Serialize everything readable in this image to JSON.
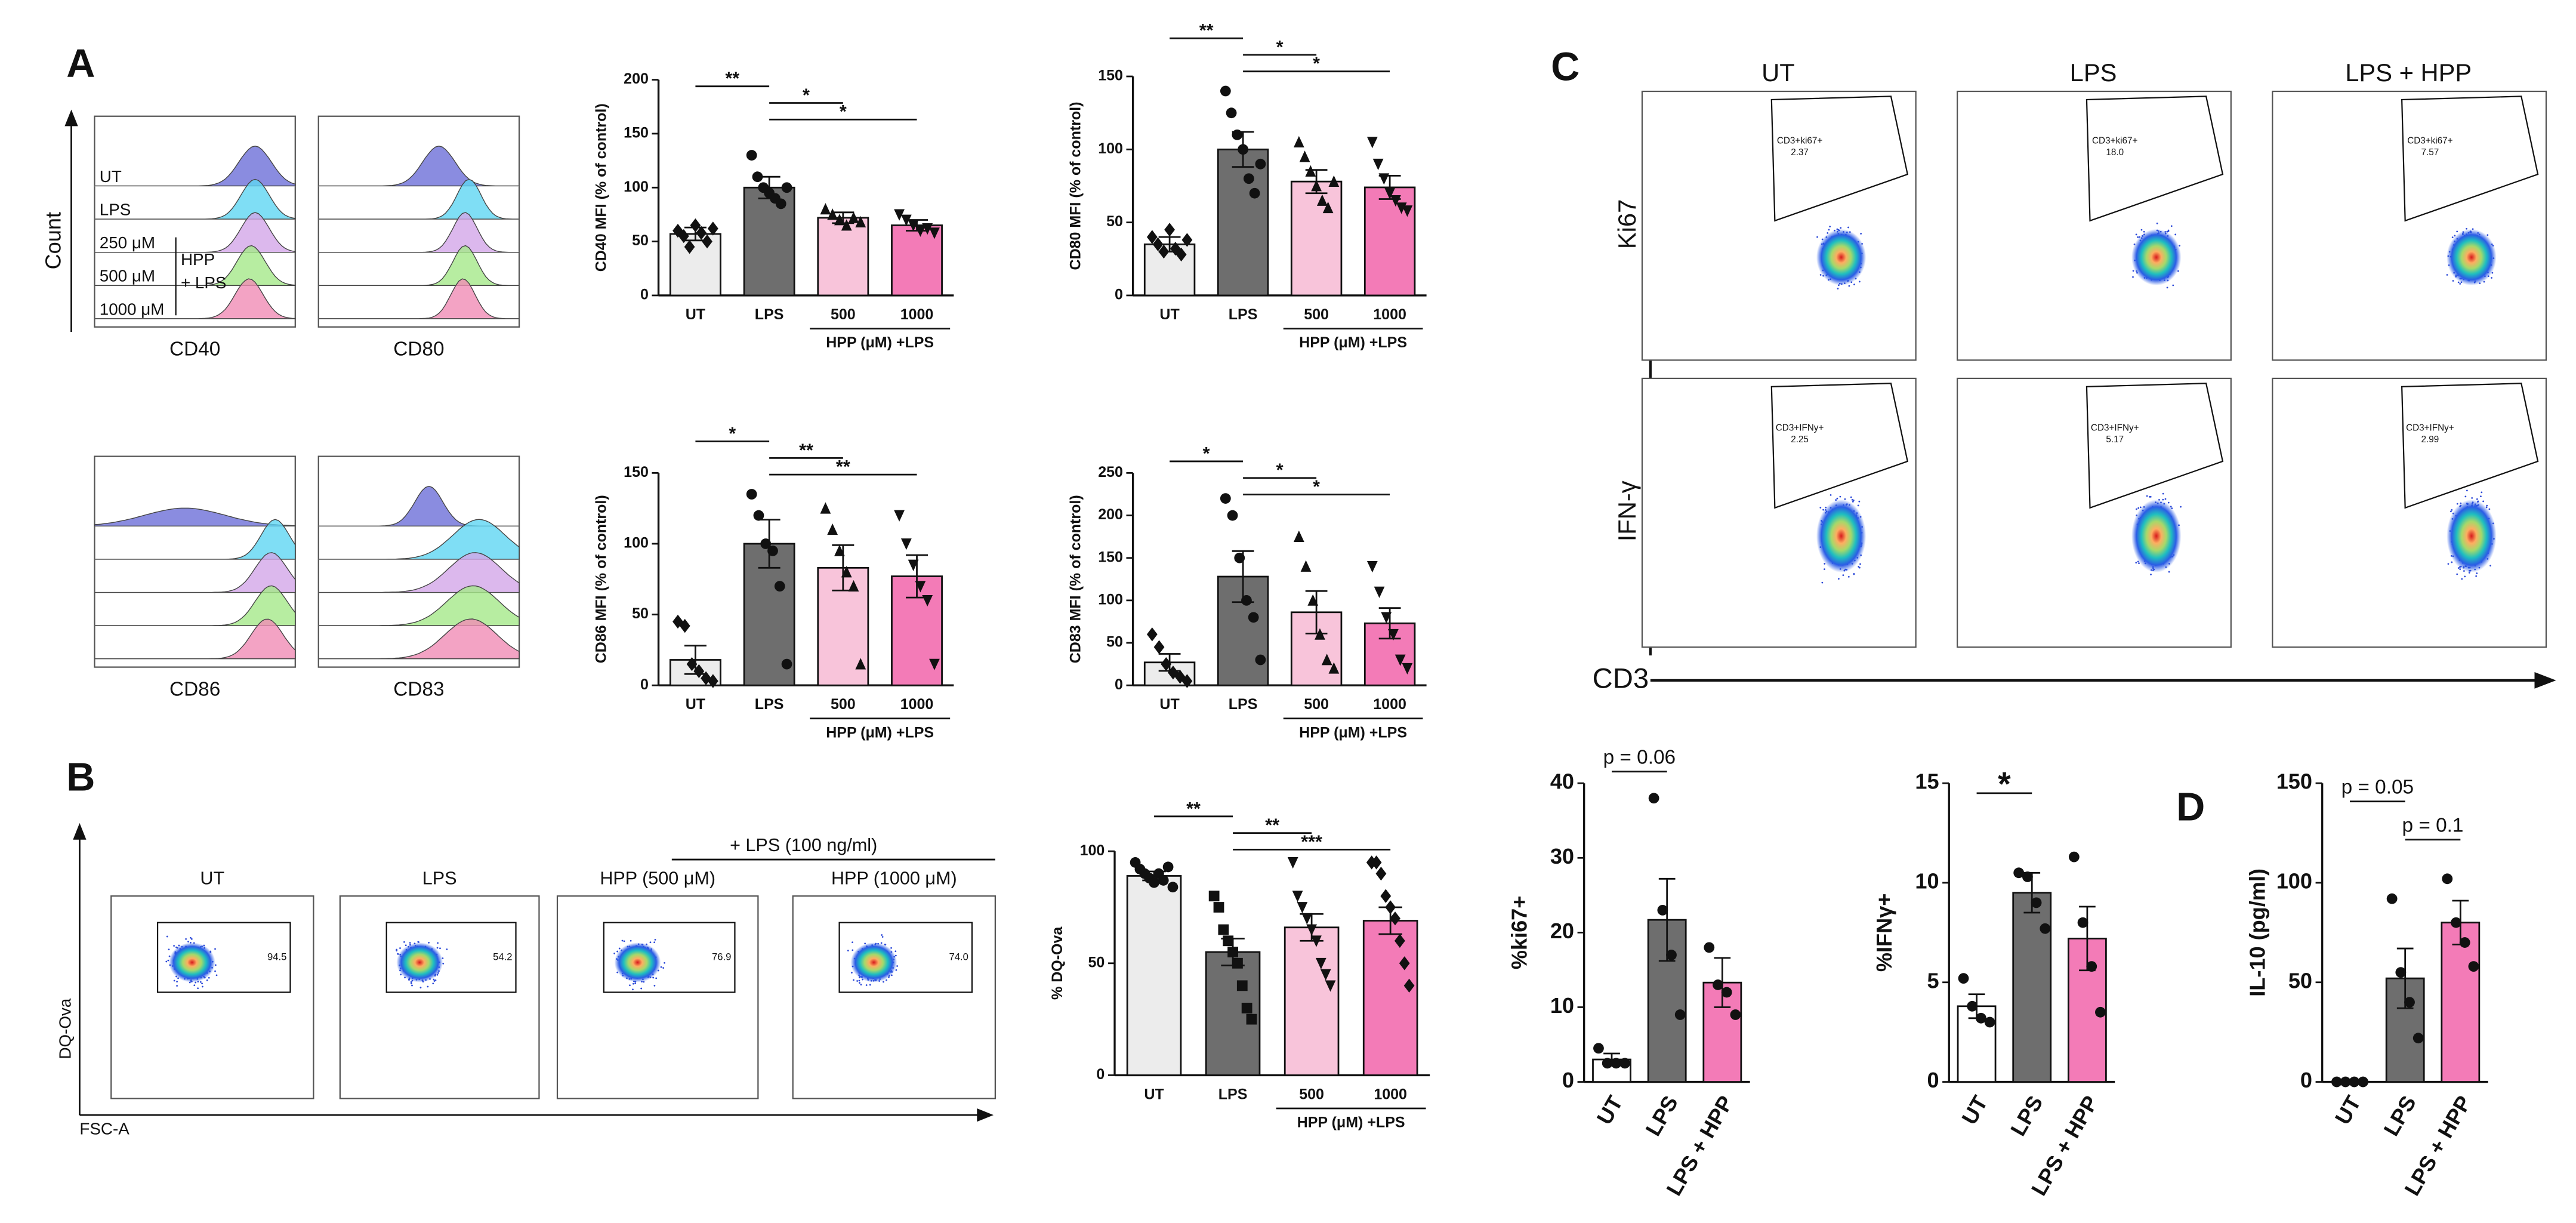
{
  "panel_labels": [
    "A",
    "B",
    "C",
    "D"
  ],
  "histograms": {
    "y_label": "Count",
    "track_labels": [
      "UT",
      "LPS",
      "250 μM",
      "500 μM",
      "1000 μM"
    ],
    "bracket_label": [
      "HPP",
      "+ LPS"
    ],
    "markers": [
      "CD40",
      "CD80",
      "CD86",
      "CD83"
    ]
  },
  "dq_flow": {
    "header": "+ LPS (100 ng/ml)",
    "titles": [
      "UT",
      "LPS",
      "HPP (500 μM)",
      "HPP (1000 μM)"
    ],
    "gate_values": [
      "94.5",
      "54.2",
      "76.9",
      "74.0"
    ],
    "y_label": "DQ-Ova",
    "x_label": "FSC-A"
  },
  "tcell_flow": {
    "titles": [
      "UT",
      "LPS",
      "LPS + HPP"
    ],
    "rows": [
      {
        "marker": "Ki67",
        "gate": "CD3+ki67+",
        "values": [
          "2.37",
          "18.0",
          "7.57"
        ]
      },
      {
        "marker": "IFN-γ",
        "gate": "CD3+IFNy+",
        "values": [
          "2.25",
          "5.17",
          "2.99"
        ]
      }
    ],
    "x_label": "CD3"
  },
  "chart_data": [
    {
      "type": "bar",
      "ylabel": "CD40 MFI (% of control)",
      "categories": [
        "UT",
        "LPS",
        "500",
        "1000"
      ],
      "colors": [
        "#ececec",
        "#6e6e6e",
        "#f8c4da",
        "#f37bb7"
      ],
      "markers": [
        "diamond",
        "circle",
        "triangle-up",
        "triangle-down"
      ],
      "values": [
        57,
        100,
        72,
        65
      ],
      "errors": [
        6,
        10,
        5,
        5
      ],
      "points": [
        [
          60,
          55,
          45,
          65,
          58,
          50,
          62
        ],
        [
          130,
          110,
          100,
          95,
          90,
          85,
          100
        ],
        [
          80,
          75,
          70,
          65,
          72,
          68
        ],
        [
          75,
          70,
          65,
          60,
          62,
          58
        ]
      ],
      "ylim": [
        0,
        200
      ],
      "yticks": [
        0,
        50,
        100,
        150,
        200
      ],
      "comparisons": [
        {
          "label": "**",
          "pair": [
            "UT",
            "LPS"
          ]
        },
        {
          "label": "*",
          "pair": [
            "LPS",
            "500"
          ]
        },
        {
          "label": "*",
          "pair": [
            "LPS",
            "1000"
          ]
        }
      ],
      "group_label": {
        "text": "HPP (μM) +LPS",
        "categories": [
          "500",
          "1000"
        ]
      }
    },
    {
      "type": "bar",
      "ylabel": "CD80 MFI (% of control)",
      "categories": [
        "UT",
        "LPS",
        "500",
        "1000"
      ],
      "colors": [
        "#ececec",
        "#6e6e6e",
        "#f8c4da",
        "#f37bb7"
      ],
      "markers": [
        "diamond",
        "circle",
        "triangle-up",
        "triangle-down"
      ],
      "values": [
        35,
        100,
        78,
        74
      ],
      "errors": [
        5,
        12,
        8,
        8
      ],
      "points": [
        [
          40,
          35,
          30,
          45,
          32,
          28,
          38
        ],
        [
          140,
          125,
          110,
          100,
          80,
          70,
          90
        ],
        [
          105,
          95,
          85,
          75,
          65,
          60,
          78
        ],
        [
          105,
          90,
          80,
          70,
          65,
          60,
          58
        ]
      ],
      "ylim": [
        0,
        150
      ],
      "yticks": [
        0,
        50,
        100,
        150
      ],
      "comparisons": [
        {
          "label": "**",
          "pair": [
            "UT",
            "LPS"
          ]
        },
        {
          "label": "*",
          "pair": [
            "LPS",
            "500"
          ]
        },
        {
          "label": "*",
          "pair": [
            "LPS",
            "1000"
          ]
        }
      ],
      "group_label": {
        "text": "HPP (μM) +LPS",
        "categories": [
          "500",
          "1000"
        ]
      }
    },
    {
      "type": "bar",
      "ylabel": "CD86 MFI (% of control)",
      "categories": [
        "UT",
        "LPS",
        "500",
        "1000"
      ],
      "colors": [
        "#ececec",
        "#6e6e6e",
        "#f8c4da",
        "#f37bb7"
      ],
      "markers": [
        "diamond",
        "circle",
        "triangle-up",
        "triangle-down"
      ],
      "values": [
        18,
        100,
        83,
        77
      ],
      "errors": [
        10,
        17,
        16,
        15
      ],
      "points": [
        [
          45,
          42,
          15,
          10,
          5,
          3
        ],
        [
          135,
          120,
          100,
          95,
          70,
          15
        ],
        [
          125,
          110,
          95,
          80,
          70,
          15
        ],
        [
          120,
          100,
          85,
          70,
          60,
          15
        ]
      ],
      "ylim": [
        0,
        150
      ],
      "yticks": [
        0,
        50,
        100,
        150
      ],
      "comparisons": [
        {
          "label": "*",
          "pair": [
            "UT",
            "LPS"
          ]
        },
        {
          "label": "**",
          "pair": [
            "LPS",
            "500"
          ]
        },
        {
          "label": "**",
          "pair": [
            "LPS",
            "1000"
          ]
        }
      ],
      "group_label": {
        "text": "HPP (μM) +LPS",
        "categories": [
          "500",
          "1000"
        ]
      }
    },
    {
      "type": "bar",
      "ylabel": "CD83 MFI (% of control)",
      "categories": [
        "UT",
        "LPS",
        "500",
        "1000"
      ],
      "colors": [
        "#ececec",
        "#6e6e6e",
        "#f8c4da",
        "#f37bb7"
      ],
      "markers": [
        "diamond",
        "circle",
        "triangle-up",
        "triangle-down"
      ],
      "values": [
        27,
        128,
        86,
        73
      ],
      "errors": [
        10,
        30,
        25,
        18
      ],
      "points": [
        [
          60,
          45,
          25,
          15,
          10,
          5
        ],
        [
          220,
          200,
          150,
          100,
          80,
          30
        ],
        [
          175,
          140,
          100,
          60,
          30,
          20
        ],
        [
          140,
          110,
          80,
          60,
          30,
          20
        ]
      ],
      "ylim": [
        0,
        250
      ],
      "yticks": [
        0,
        50,
        100,
        150,
        200,
        250
      ],
      "comparisons": [
        {
          "label": "*",
          "pair": [
            "UT",
            "LPS"
          ]
        },
        {
          "label": "*",
          "pair": [
            "LPS",
            "500"
          ]
        },
        {
          "label": "*",
          "pair": [
            "LPS",
            "1000"
          ]
        }
      ],
      "group_label": {
        "text": "HPP (μM) +LPS",
        "categories": [
          "500",
          "1000"
        ]
      }
    },
    {
      "type": "bar",
      "ylabel": "% DQ-Ova",
      "categories": [
        "UT",
        "LPS",
        "500",
        "1000"
      ],
      "colors": [
        "#ececec",
        "#6e6e6e",
        "#f8c4da",
        "#f37bb7"
      ],
      "markers": [
        "circle",
        "square",
        "triangle-down",
        "diamond"
      ],
      "values": [
        89,
        55,
        66,
        69
      ],
      "errors": [
        2,
        6,
        6,
        6
      ],
      "points": [
        [
          95,
          92,
          90,
          88,
          86,
          90,
          87,
          93,
          84
        ],
        [
          80,
          75,
          65,
          60,
          55,
          50,
          40,
          30,
          25
        ],
        [
          95,
          80,
          75,
          70,
          65,
          60,
          50,
          45,
          40
        ],
        [
          95,
          95,
          90,
          80,
          75,
          70,
          60,
          50,
          40
        ]
      ],
      "ylim": [
        0,
        100
      ],
      "yticks": [
        0,
        50,
        100
      ],
      "comparisons": [
        {
          "label": "**",
          "pair": [
            "UT",
            "LPS"
          ]
        },
        {
          "label": "**",
          "pair": [
            "LPS",
            "500"
          ]
        },
        {
          "label": "***",
          "pair": [
            "LPS",
            "1000"
          ]
        }
      ],
      "group_label": {
        "text": "HPP (μM) +LPS",
        "categories": [
          "500",
          "1000"
        ]
      }
    },
    {
      "type": "bar",
      "ylabel": "%ki67+",
      "categories": [
        "UT",
        "LPS",
        "LPS + HPP"
      ],
      "colors": [
        "#ffffff",
        "#6e6e6e",
        "#f37bb7"
      ],
      "markers": [
        "circle",
        "circle",
        "circle"
      ],
      "rotate_labels": true,
      "values": [
        3,
        21.7,
        13.3
      ],
      "errors": [
        0.8,
        5.5,
        3.3
      ],
      "points": [
        [
          4.5,
          2.5,
          2.5,
          2.5
        ],
        [
          38,
          23,
          17,
          9
        ],
        [
          18,
          13,
          12,
          9
        ]
      ],
      "ylim": [
        0,
        40
      ],
      "yticks": [
        0,
        10,
        20,
        30,
        40
      ],
      "comparisons": [
        {
          "label": "p = 0.06",
          "pair": [
            "UT",
            "LPS"
          ]
        }
      ]
    },
    {
      "type": "bar",
      "ylabel": "%IFNγ+",
      "categories": [
        "UT",
        "LPS",
        "LPS + HPP"
      ],
      "colors": [
        "#ffffff",
        "#6e6e6e",
        "#f37bb7"
      ],
      "markers": [
        "circle",
        "circle",
        "circle"
      ],
      "rotate_labels": true,
      "values": [
        3.8,
        9.5,
        7.2
      ],
      "errors": [
        0.6,
        1,
        1.6
      ],
      "points": [
        [
          5.2,
          3.8,
          3.2,
          3.0
        ],
        [
          10.5,
          10.3,
          9.0,
          7.7
        ],
        [
          11.3,
          8.0,
          5.8,
          3.5
        ]
      ],
      "ylim": [
        0,
        15
      ],
      "yticks": [
        0,
        5,
        10,
        15
      ],
      "comparisons": [
        {
          "label": "*",
          "pair": [
            "UT",
            "LPS"
          ]
        }
      ]
    },
    {
      "type": "bar",
      "ylabel": "IL-10 (pg/ml)",
      "categories": [
        "UT",
        "LPS",
        "LPS + HPP"
      ],
      "colors": [
        "#ffffff",
        "#6e6e6e",
        "#f37bb7"
      ],
      "markers": [
        "circle",
        "circle",
        "circle"
      ],
      "rotate_labels": true,
      "values": [
        0,
        52,
        80
      ],
      "errors": [
        0,
        15,
        11
      ],
      "points": [
        [
          0,
          0,
          0,
          0
        ],
        [
          92,
          55,
          40,
          22
        ],
        [
          102,
          80,
          70,
          58
        ]
      ],
      "ylim": [
        0,
        150
      ],
      "yticks": [
        0,
        50,
        100,
        150
      ],
      "comparisons": [
        {
          "label": "p = 0.05",
          "pair": [
            "UT",
            "LPS"
          ]
        },
        {
          "label": "p = 0.1",
          "pair": [
            "LPS",
            "LPS + HPP"
          ]
        }
      ]
    }
  ]
}
